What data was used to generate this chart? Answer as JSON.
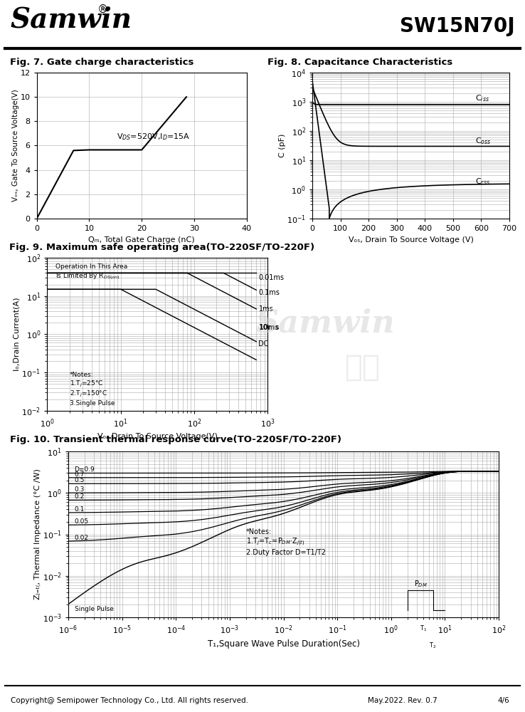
{
  "header_title": "Samwin",
  "header_subtitle": "SW15N70J",
  "footer_text": "Copyright@ Semipower Technology Co., Ltd. All rights reserved.",
  "footer_right1": "May.2022. Rev. 0.7",
  "footer_right2": "4/6",
  "fig7_title": "Fig. 7. Gate charge characteristics",
  "fig7_xlabel": "Qₘ, Total Gate Charge (nC)",
  "fig7_ylabel": "Vₒₛ, Gate To Source Voltage(V)",
  "fig7_xlim": [
    0,
    40
  ],
  "fig7_ylim": [
    0,
    12
  ],
  "fig7_xticks": [
    0,
    10,
    20,
    30,
    40
  ],
  "fig7_yticks": [
    0,
    2,
    4,
    6,
    8,
    10,
    12
  ],
  "fig7_data_x": [
    0,
    7,
    10,
    20,
    28.5
  ],
  "fig7_data_y": [
    0,
    5.6,
    5.65,
    5.65,
    10
  ],
  "fig8_title": "Fig. 8. Capacitance Characteristics",
  "fig8_xlabel": "Vₒₛ, Drain To Source Voltage (V)",
  "fig8_ylabel": "C (pF)",
  "fig8_xlim": [
    0,
    700
  ],
  "fig8_xticks": [
    0,
    100,
    200,
    300,
    400,
    500,
    600,
    700
  ],
  "fig9_title": "Fig. 9. Maximum safe operating area(TO-220SF/TO-220F)",
  "fig9_xlabel": "Vₒₛ,Drain To Source Voltage(V)",
  "fig9_ylabel": "Iₒ,Drain Current(A)",
  "fig10_title": "Fig. 10. Transient thermal response curve(TO-220SF/TO-220F)",
  "fig10_xlabel": "T₁,Square Wave Pulse Duration(Sec)",
  "fig10_ylabel": "Zⱼ₌ₜ₍, Thermal Impedance (°C /W)",
  "bg_color": "#ffffff",
  "line_color": "#000000",
  "grid_color": "#aaaaaa",
  "text_color": "#000000"
}
